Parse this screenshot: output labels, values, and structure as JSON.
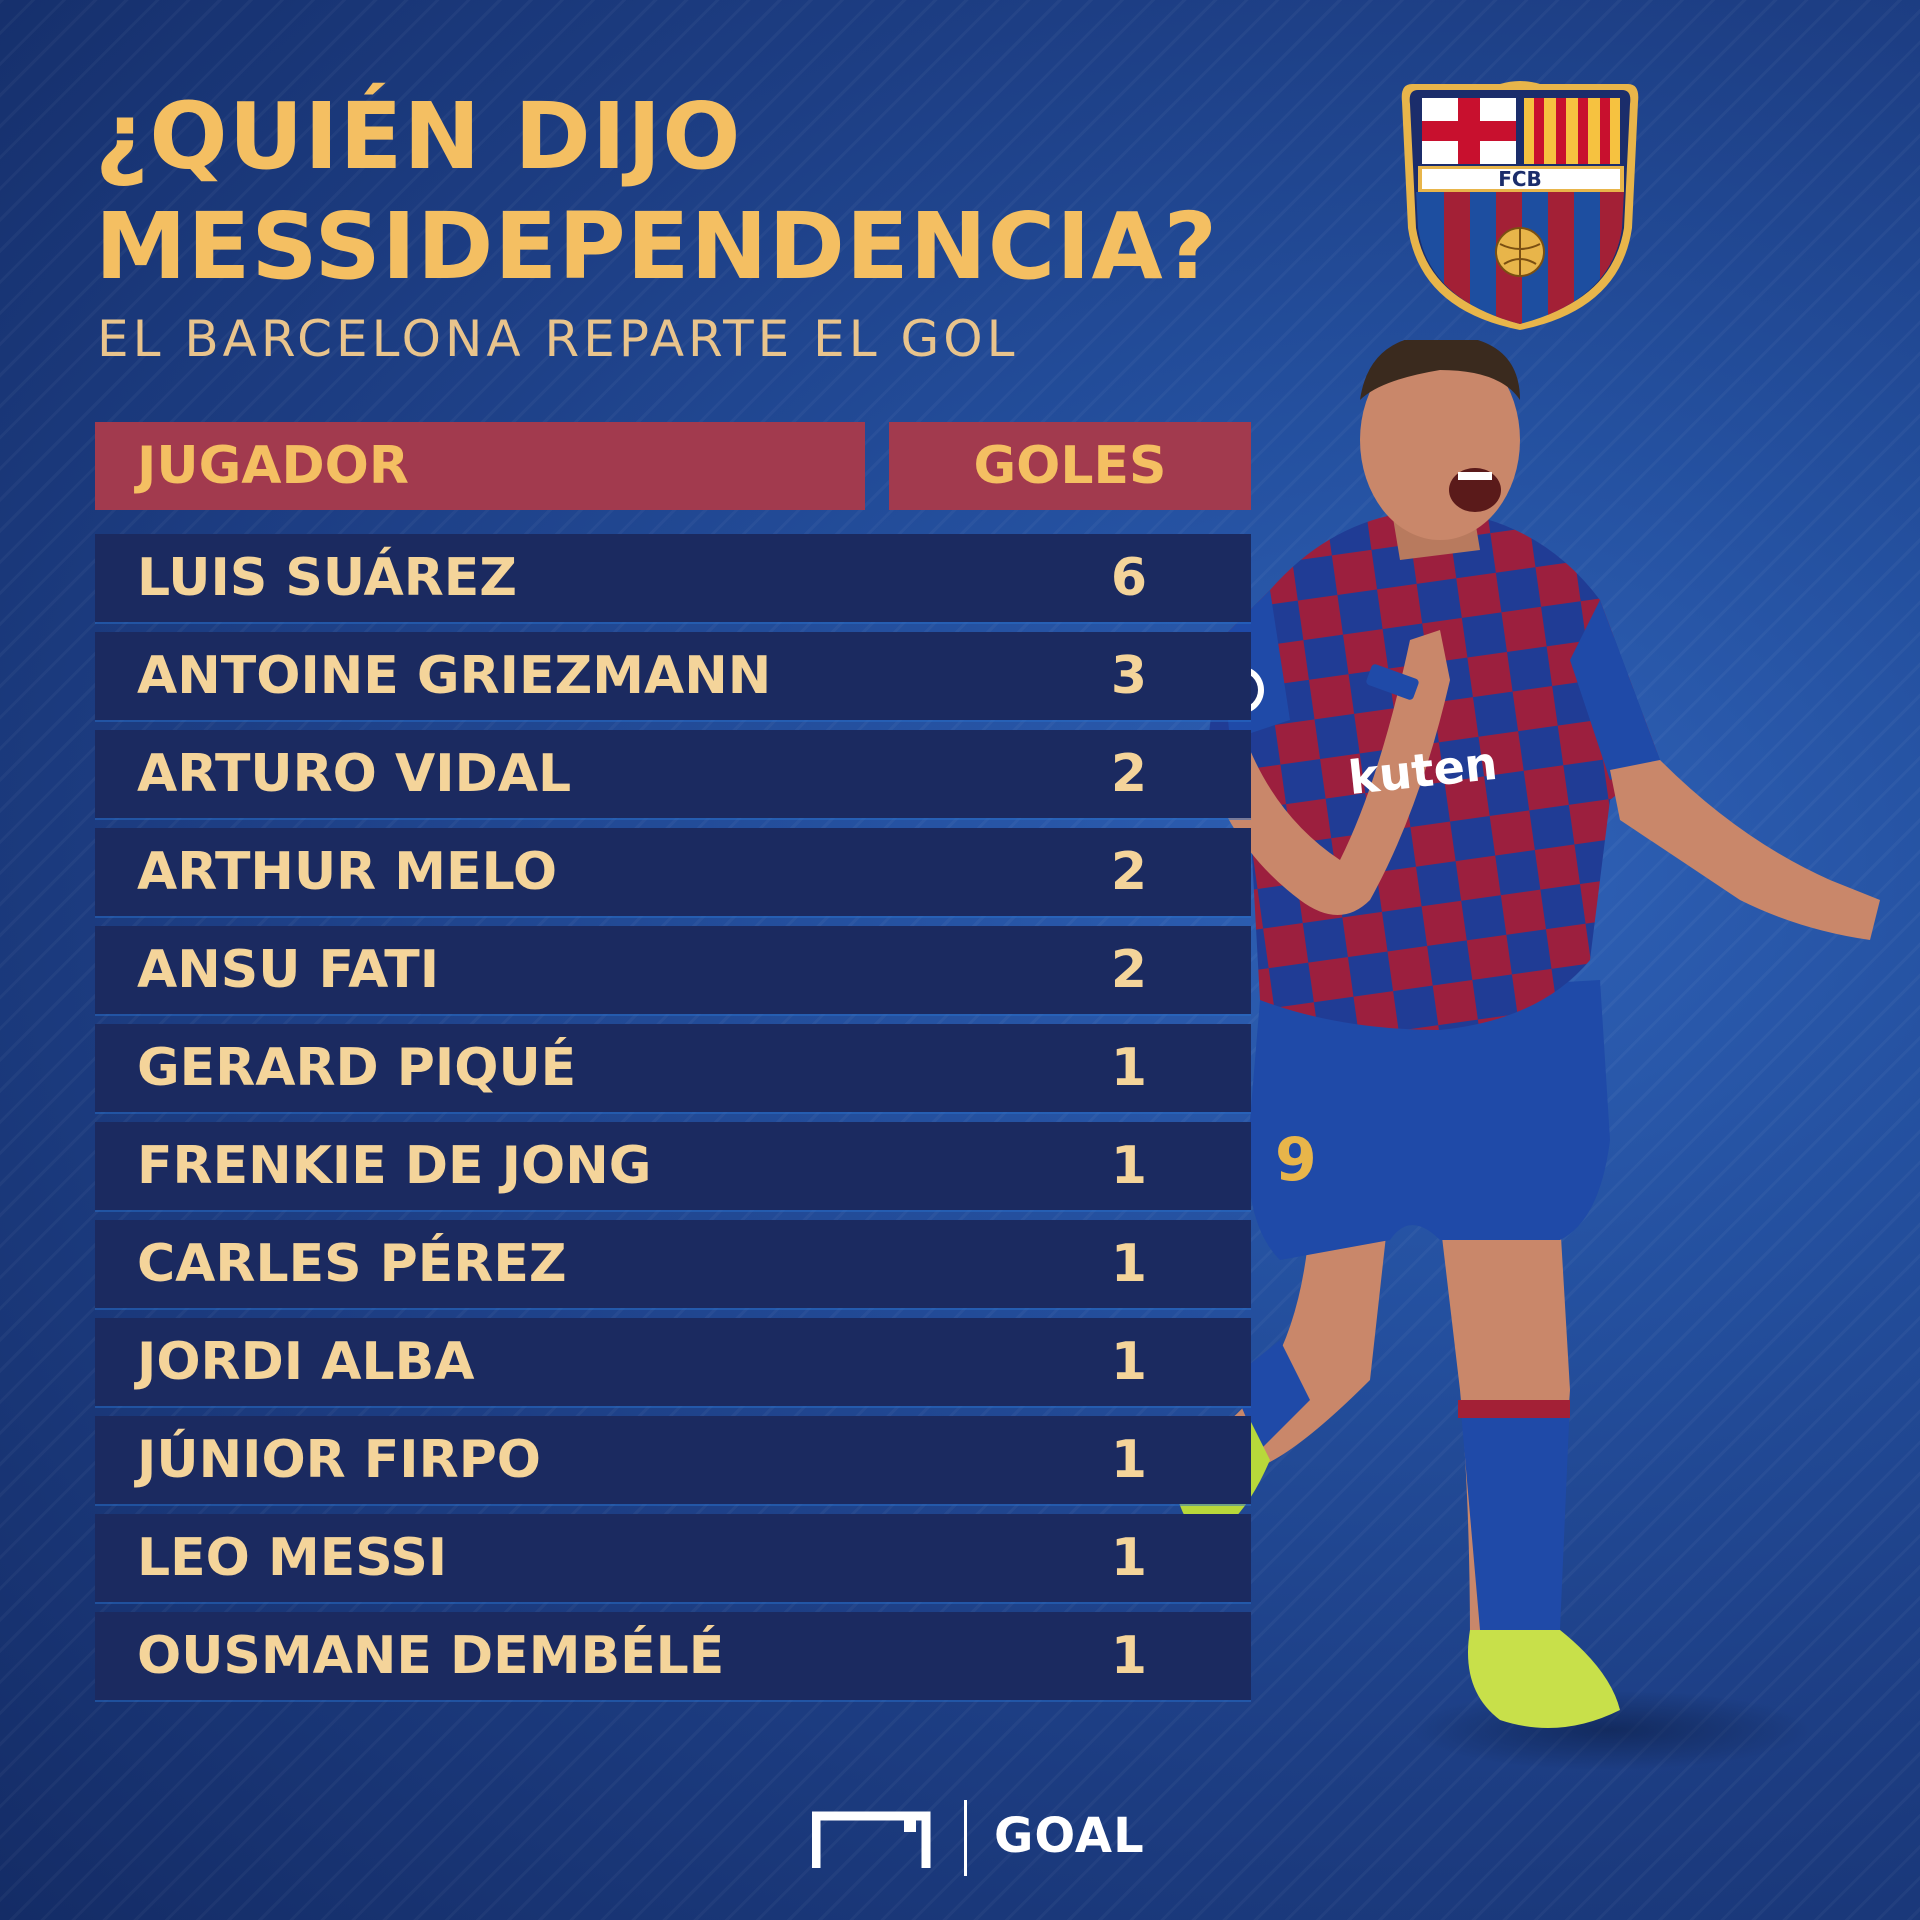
{
  "header": {
    "title_line1": "¿QUIÉN DIJO",
    "title_line2": "MESSIDEPENDENCIA?",
    "subtitle": "EL BARCELONA REPARTE EL GOL"
  },
  "crest": {
    "label": "FCB"
  },
  "table": {
    "col_player": "JUGADOR",
    "col_goals": "GOLES",
    "rows": [
      {
        "name": "LUIS SUÁREZ",
        "goals": "6"
      },
      {
        "name": "ANTOINE GRIEZMANN",
        "goals": "3"
      },
      {
        "name": "ARTURO VIDAL",
        "goals": "2"
      },
      {
        "name": "ARTHUR MELO",
        "goals": "2"
      },
      {
        "name": "ANSU FATI",
        "goals": "2"
      },
      {
        "name": "GERARD PIQUÉ",
        "goals": "1"
      },
      {
        "name": "FRENKIE DE JONG",
        "goals": "1"
      },
      {
        "name": "CARLES PÉREZ",
        "goals": "1"
      },
      {
        "name": "JORDI ALBA",
        "goals": "1"
      },
      {
        "name": "JÚNIOR FIRPO",
        "goals": "1"
      },
      {
        "name": "LEO MESSI",
        "goals": "1"
      },
      {
        "name": "OUSMANE DEMBÉLÉ",
        "goals": "1"
      }
    ]
  },
  "player_photo": {
    "shirt_text": "kuten",
    "number": "9"
  },
  "footer": {
    "brand": "GOAL"
  }
}
